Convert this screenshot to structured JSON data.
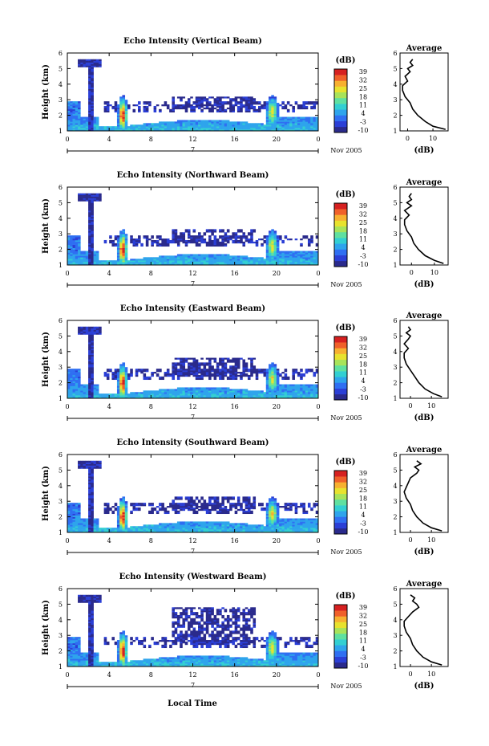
{
  "figure": {
    "xlabel": "Local Time",
    "colorbar_unit": "(dB)",
    "colorbar_ticks": [
      "39",
      "32",
      "25",
      "18",
      "11",
      "4",
      "-3",
      "-10"
    ],
    "colorbar_range": [
      -10,
      39
    ],
    "date_label": "Nov 2005",
    "day_label": "7",
    "x_ticks": [
      "0",
      "4",
      "8",
      "12",
      "16",
      "20",
      "0"
    ],
    "y_ticks": [
      "1",
      "2",
      "3",
      "4",
      "5",
      "6"
    ],
    "ylabel": "Height (km)",
    "avg_title": "Average",
    "avg_xlabel": "(dB)",
    "colormap": [
      "#2a2a8c",
      "#2b3fd6",
      "#2f6ff2",
      "#2ea4ec",
      "#32cfd2",
      "#5fe0a0",
      "#a8e35a",
      "#e8e22e",
      "#f7b030",
      "#f0602a",
      "#d62020"
    ]
  },
  "chart_data": [
    {
      "type": "heatmap",
      "title": "Echo Intensity (Vertical Beam)",
      "x_range_hours": [
        0,
        24
      ],
      "y_range_km": [
        1,
        6
      ],
      "avg_profile": {
        "x_ticks": [
          "0",
          "10"
        ],
        "xlim": [
          -3,
          16
        ],
        "height_km": [
          1.1,
          1.3,
          1.6,
          2.0,
          2.4,
          2.8,
          3.2,
          3.6,
          3.9,
          4.2,
          4.5,
          4.8,
          5.0,
          5.2,
          5.4,
          5.6
        ],
        "db": [
          15,
          10,
          7,
          4,
          2,
          1,
          -1,
          -2,
          -2,
          0,
          -1,
          1,
          0,
          2,
          1,
          2
        ]
      }
    },
    {
      "type": "heatmap",
      "title": "Echo Intensity (Northward Beam)",
      "x_range_hours": [
        0,
        24
      ],
      "y_range_km": [
        1,
        6
      ],
      "avg_profile": {
        "x_ticks": [
          "0",
          "10"
        ],
        "xlim": [
          -5,
          16
        ],
        "height_km": [
          1.1,
          1.3,
          1.6,
          2.0,
          2.4,
          2.8,
          3.2,
          3.6,
          3.9,
          4.2,
          4.5,
          4.8,
          5.0,
          5.2,
          5.4,
          5.6
        ],
        "db": [
          14,
          10,
          6,
          3,
          1,
          0,
          -2,
          -3,
          -3,
          -1,
          -3,
          0,
          -2,
          0,
          -1,
          0
        ]
      }
    },
    {
      "type": "heatmap",
      "title": "Echo Intensity (Eastward Beam)",
      "x_range_hours": [
        0,
        24
      ],
      "y_range_km": [
        1,
        6
      ],
      "avg_profile": {
        "x_ticks": [
          "0",
          "10"
        ],
        "xlim": [
          -5,
          18
        ],
        "height_km": [
          1.1,
          1.3,
          1.6,
          2.0,
          2.4,
          2.8,
          3.2,
          3.6,
          3.9,
          4.2,
          4.5,
          4.8,
          5.0,
          5.2,
          5.4,
          5.6
        ],
        "db": [
          15,
          11,
          7,
          4,
          2,
          0,
          -2,
          -3,
          -3,
          -1,
          -3,
          -1,
          0,
          -2,
          0,
          -1
        ]
      }
    },
    {
      "type": "heatmap",
      "title": "Echo Intensity (Southward Beam)",
      "x_range_hours": [
        0,
        24
      ],
      "y_range_km": [
        1,
        6
      ],
      "avg_profile": {
        "x_ticks": [
          "0",
          "10"
        ],
        "xlim": [
          -5,
          18
        ],
        "height_km": [
          1.1,
          1.3,
          1.6,
          2.0,
          2.4,
          2.8,
          3.2,
          3.6,
          3.9,
          4.2,
          4.5,
          4.8,
          5.0,
          5.2,
          5.4,
          5.6
        ],
        "db": [
          15,
          10,
          6,
          3,
          1,
          0,
          -2,
          -3,
          -2,
          -1,
          0,
          3,
          4,
          2,
          5,
          3
        ]
      }
    },
    {
      "type": "heatmap",
      "title": "Echo Intensity (Westward Beam)",
      "x_range_hours": [
        0,
        24
      ],
      "y_range_km": [
        1,
        6
      ],
      "avg_profile": {
        "x_ticks": [
          "0",
          "10"
        ],
        "xlim": [
          -5,
          18
        ],
        "height_km": [
          1.1,
          1.3,
          1.6,
          2.0,
          2.4,
          2.8,
          3.2,
          3.6,
          3.9,
          4.2,
          4.5,
          4.8,
          5.0,
          5.2,
          5.4,
          5.6
        ],
        "db": [
          15,
          10,
          6,
          3,
          1,
          0,
          -2,
          -3,
          -3,
          -1,
          1,
          4,
          3,
          1,
          2,
          0
        ]
      }
    }
  ]
}
